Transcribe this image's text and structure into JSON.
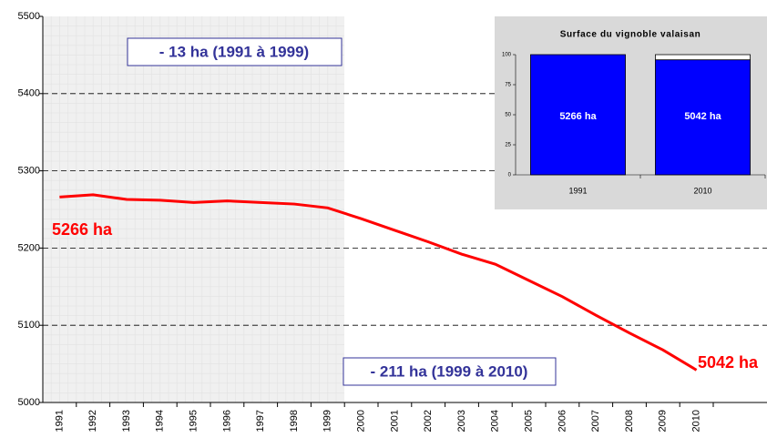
{
  "chart_data": [
    {
      "type": "line",
      "categories": [
        "1991",
        "1992",
        "1993",
        "1994",
        "1995",
        "1996",
        "1997",
        "1998",
        "1999",
        "2000",
        "2001",
        "2002",
        "2003",
        "2004",
        "2005",
        "2006",
        "2007",
        "2008",
        "2009",
        "2010"
      ],
      "series": [
        {
          "color": "#ff0000",
          "values": [
            5266,
            5269,
            5263,
            5262,
            5259,
            5261,
            5259,
            5257,
            5252,
            5238,
            5223,
            5208,
            5192,
            5179,
            5158,
            5137,
            5113,
            5090,
            5068,
            5042
          ]
        }
      ],
      "ylim": [
        5000,
        5500
      ],
      "yticks": [
        5000,
        5100,
        5200,
        5300,
        5400,
        5500
      ],
      "grid": true,
      "annotations": [
        "- 13 ha (1991 à 1999)",
        "- 211 ha (1999 à 2010)",
        "5266 ha",
        "5042 ha"
      ]
    },
    {
      "type": "stacked_bar",
      "title": "Surface du vignoble valaisan",
      "categories": [
        "1991",
        "2010"
      ],
      "series": [
        {
          "color": "#0000ff",
          "values": [
            100,
            95.7
          ]
        },
        {
          "color": "#ffffff",
          "values": [
            0,
            4.3
          ]
        }
      ],
      "ylim": [
        0,
        100
      ],
      "yticks": [
        0,
        25,
        50,
        75,
        100
      ],
      "annotations": [
        "5266 ha",
        "5042 ha"
      ]
    }
  ]
}
